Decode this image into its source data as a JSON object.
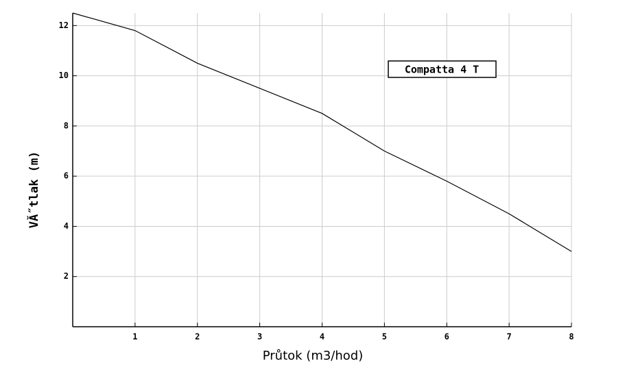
{
  "chart_data": {
    "type": "line",
    "xlabel": "Průtok (m3/hod)",
    "ylabel": "VĂ˝tlak (m)",
    "annotation": "Compatta 4 T",
    "x": [
      0,
      1,
      2,
      3,
      4,
      5,
      6,
      7,
      8
    ],
    "series": [
      {
        "color": "#000000",
        "values": [
          12.5,
          11.8,
          10.5,
          9.5,
          8.5,
          7.0,
          5.8,
          4.5,
          3.0
        ]
      }
    ],
    "xlim": [
      0,
      8
    ],
    "xticks": [
      1,
      2,
      3,
      4,
      5,
      6,
      7,
      8
    ],
    "ylim": [
      0,
      12.5
    ],
    "yticks": [
      2,
      4,
      6,
      8,
      10,
      12
    ],
    "grid": true
  }
}
